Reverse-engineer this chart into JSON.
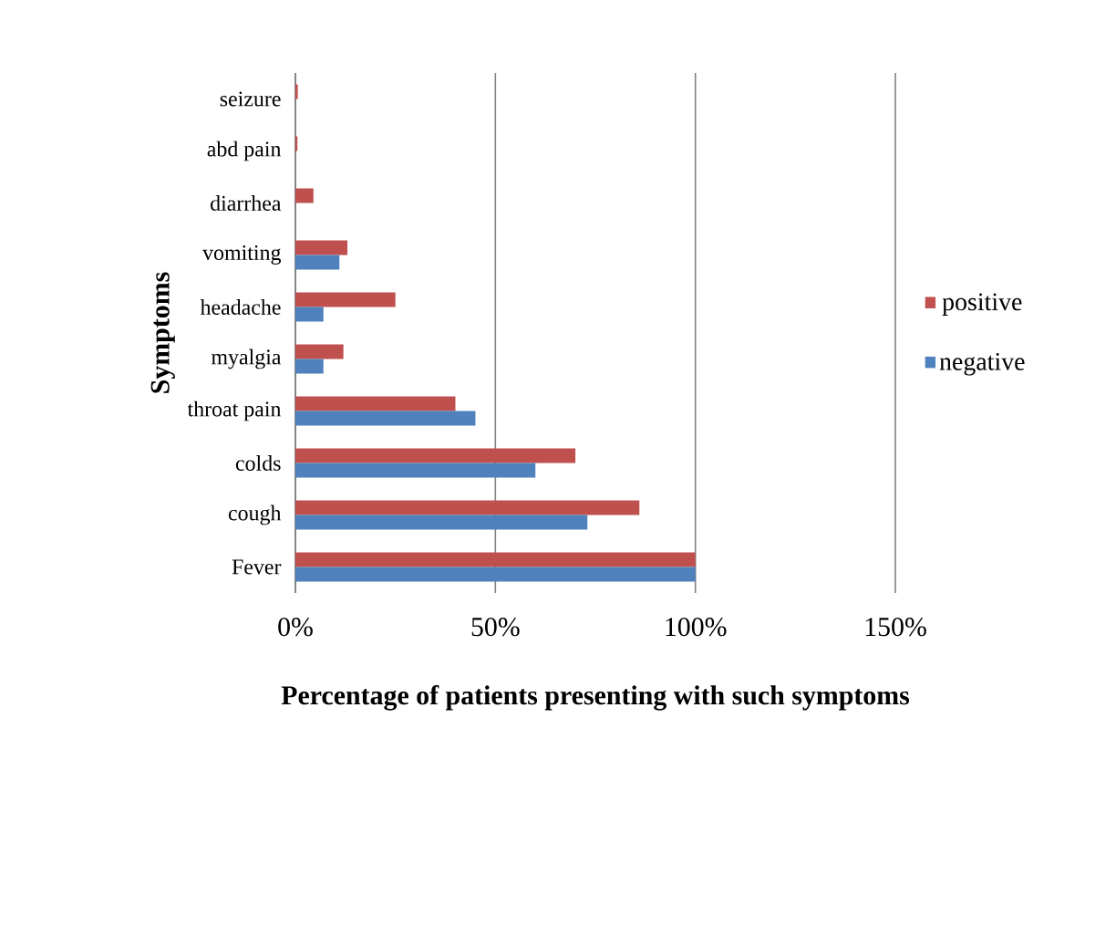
{
  "chart_data": {
    "type": "bar",
    "orientation": "horizontal",
    "xlabel": "Percentage of patients presenting with such symptoms",
    "ylabel": "Symptoms",
    "categories": [
      "seizure",
      "abd pain",
      "diarrhea",
      "vomiting",
      "headache",
      "myalgia",
      "throat pain",
      "colds",
      "cough",
      "Fever"
    ],
    "series": [
      {
        "name": "positive",
        "color": "#c0504d",
        "values": [
          0.6,
          0.5,
          4.5,
          13,
          25,
          12,
          40,
          70,
          86,
          100
        ]
      },
      {
        "name": "negative",
        "color": "#4f81bd",
        "values": [
          0,
          0,
          0,
          11,
          7,
          7,
          45,
          60,
          73,
          100
        ]
      }
    ],
    "xlim": [
      0,
      150
    ],
    "xticks": [
      {
        "value": 0,
        "label": "0%"
      },
      {
        "value": 50,
        "label": "50%"
      },
      {
        "value": 100,
        "label": "100%"
      },
      {
        "value": 150,
        "label": "150%"
      }
    ],
    "grid": "x",
    "legend": "right"
  }
}
